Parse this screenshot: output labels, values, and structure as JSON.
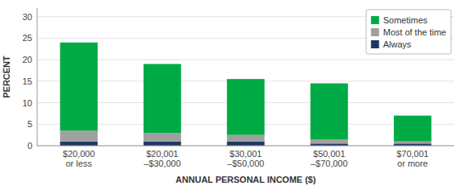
{
  "chart_data": {
    "type": "bar",
    "stacked": true,
    "categories": [
      "$20,000\nor less",
      "$20,001\n–$30,000",
      "$30,001\n–$50,000",
      "$50,001\n–$70,000",
      "$70,001\nor more"
    ],
    "series": [
      {
        "name": "Always",
        "color": "#1f3864",
        "values": [
          1.0,
          1.0,
          1.0,
          0.5,
          0.5
        ]
      },
      {
        "name": "Most of the time",
        "color": "#a0a0a0",
        "values": [
          2.5,
          2.0,
          1.5,
          1.0,
          0.5
        ]
      },
      {
        "name": "Sometimes",
        "color": "#00aa44",
        "values": [
          20.5,
          16.0,
          13.0,
          13.0,
          6.0
        ]
      }
    ],
    "xlabel": "ANNUAL PERSONAL INCOME ($)",
    "ylabel": "PERCENT",
    "ylim": [
      0,
      32
    ],
    "yticks": [
      0,
      5,
      10,
      15,
      20,
      25,
      30
    ],
    "grid": true,
    "legend": "upper right"
  }
}
